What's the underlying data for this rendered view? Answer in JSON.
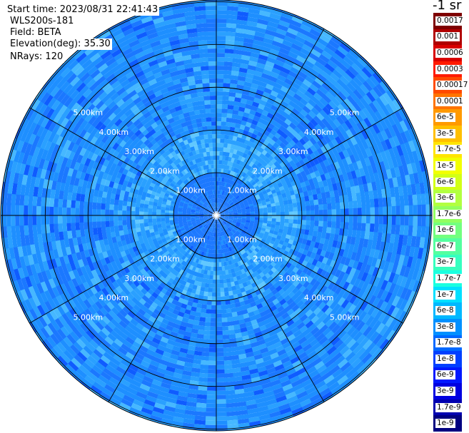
{
  "header": {
    "start_time": "Start time: 2023/08/31 22:41:43",
    "instrument": "WLS200s-181",
    "field": "Field: BETA",
    "elevation": "Elevation(deg): 35.30",
    "nrays": "NRays: 120"
  },
  "ppi": {
    "ring_labels": [
      "1.00km",
      "2.00km",
      "3.00km",
      "4.00km",
      "5.00km"
    ],
    "rings_km": [
      1,
      2,
      3,
      4,
      5
    ],
    "max_range_km": 5.04,
    "spokes": 12,
    "nrays": 120,
    "dominant_colors": [
      "#1e8fff",
      "#1b78ff",
      "#2aa0ff",
      "#46b8ff",
      "#0f5cff",
      "#61c8ff"
    ]
  },
  "colorbar": {
    "unit_label": "-1 sr",
    "levels": [
      {
        "label": "0.0017",
        "color": "#7f0000"
      },
      {
        "label": "0.001",
        "color": "#b00000"
      },
      {
        "label": "0.0006",
        "color": "#d80000"
      },
      {
        "label": "0.0003",
        "color": "#ff1a00"
      },
      {
        "label": "0.00017",
        "color": "#ff4a00"
      },
      {
        "label": "0.0001",
        "color": "#ff7400"
      },
      {
        "label": "6e-5",
        "color": "#ff9a00"
      },
      {
        "label": "3e-5",
        "color": "#ffbf00"
      },
      {
        "label": "1.7e-5",
        "color": "#ffe500"
      },
      {
        "label": "1e-5",
        "color": "#f2ff00"
      },
      {
        "label": "6e-6",
        "color": "#d2ff16"
      },
      {
        "label": "3e-6",
        "color": "#b2ff40"
      },
      {
        "label": "1.7e-6",
        "color": "#92ff5f"
      },
      {
        "label": "1e-6",
        "color": "#73ff7f"
      },
      {
        "label": "6e-7",
        "color": "#54ff9f"
      },
      {
        "label": "3e-7",
        "color": "#36ffbf"
      },
      {
        "label": "1.7e-7",
        "color": "#1affe0"
      },
      {
        "label": "1e-7",
        "color": "#00e0ff"
      },
      {
        "label": "6e-8",
        "color": "#00b8ff"
      },
      {
        "label": "3e-8",
        "color": "#0090ff"
      },
      {
        "label": "1.7e-8",
        "color": "#0068ff"
      },
      {
        "label": "1e-8",
        "color": "#0040ff"
      },
      {
        "label": "6e-9",
        "color": "#0018ff"
      },
      {
        "label": "3e-9",
        "color": "#0000e0"
      },
      {
        "label": "1.7e-9",
        "color": "#0000b0"
      },
      {
        "label": "1e-9",
        "color": "#000080"
      }
    ]
  }
}
